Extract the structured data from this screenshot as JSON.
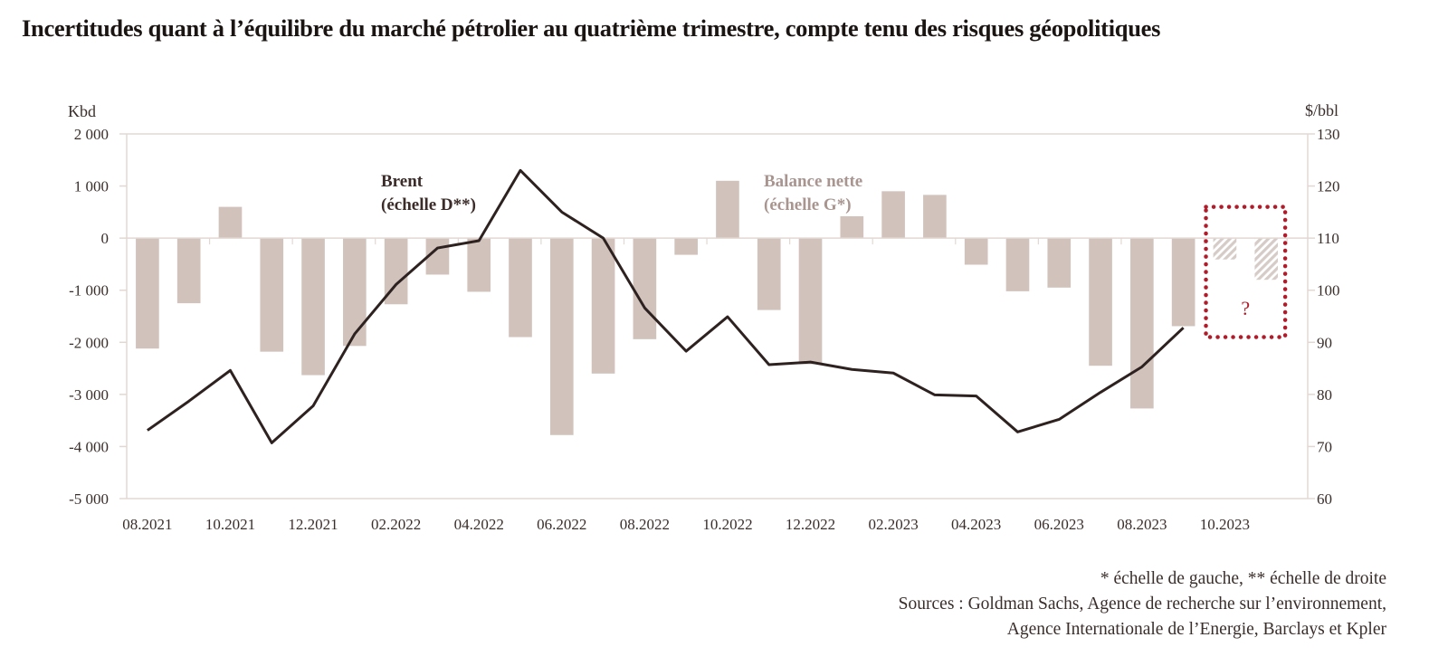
{
  "title": "Incertitudes quant à l’équilibre du marché pétrolier au quatrième trimestre, compte tenu des risques géopolitiques",
  "footnotes": {
    "scale_note": "* échelle de gauche, ** échelle de droite",
    "sources_line1": "Sources : Goldman Sachs, Agence de recherche sur l’environnement,",
    "sources_line2": "Agence Internationale de l’Energie, Barclays et Kpler"
  },
  "colors": {
    "bar": "#d1c2bb",
    "bar_forecast_hatch": "#d6ccc7",
    "line": "#2e2220",
    "highlight_box": "#b01c2a",
    "axis": "#e2d8d3",
    "balance_label": "#a89590"
  },
  "chart_data": {
    "type": "bar",
    "title": "Incertitudes quant à l’équilibre du marché pétrolier au quatrième trimestre, compte tenu des risques géopolitiques",
    "categories": [
      "08.2021",
      "09.2021",
      "10.2021",
      "11.2021",
      "12.2021",
      "01.2022",
      "02.2022",
      "03.2022",
      "04.2022",
      "05.2022",
      "06.2022",
      "07.2022",
      "08.2022",
      "09.2022",
      "10.2022",
      "11.2022",
      "12.2022",
      "01.2023",
      "02.2023",
      "03.2023",
      "04.2023",
      "05.2023",
      "06.2023",
      "07.2023",
      "08.2023",
      "09.2023",
      "10.2023",
      "11.2023"
    ],
    "x_tick_labels": [
      "08.2021",
      "10.2021",
      "12.2021",
      "02.2022",
      "04.2022",
      "06.2022",
      "08.2022",
      "10.2022",
      "12.2022",
      "02.2023",
      "04.2023",
      "06.2023",
      "08.2023",
      "10.2023"
    ],
    "left_axis": {
      "label": "Kbd",
      "ylim": [
        -5000,
        2000
      ],
      "ticks": [
        2000,
        1000,
        0,
        -1000,
        -2000,
        -3000,
        -4000,
        -5000
      ],
      "tick_labels": [
        "2 000",
        "1 000",
        "0",
        "-1 000",
        "-2 000",
        "-3 000",
        "-4 000",
        "-5 000"
      ]
    },
    "right_axis": {
      "label": "$/bbl",
      "ylim": [
        60,
        130
      ],
      "ticks": [
        130,
        120,
        110,
        100,
        90,
        80,
        70,
        60
      ],
      "tick_labels": [
        "130",
        "120",
        "110",
        "100",
        "90",
        "80",
        "70",
        "60"
      ]
    },
    "grid": false,
    "series": [
      {
        "name": "Balance nette",
        "annotation_line1": "Balance nette",
        "annotation_line2": "(échelle G*)",
        "type": "bar",
        "axis": "left",
        "values": [
          -2120,
          -1250,
          600,
          -2180,
          -2630,
          -2070,
          -1270,
          -700,
          -1030,
          -1900,
          -3780,
          -2600,
          -1940,
          -320,
          1100,
          -1380,
          -2420,
          420,
          900,
          830,
          -510,
          -1020,
          -950,
          -2450,
          -3270,
          -1690,
          -410,
          -800
        ],
        "forecast": [
          false,
          false,
          false,
          false,
          false,
          false,
          false,
          false,
          false,
          false,
          false,
          false,
          false,
          false,
          false,
          false,
          false,
          false,
          false,
          false,
          false,
          false,
          false,
          false,
          false,
          false,
          true,
          true
        ]
      },
      {
        "name": "Brent",
        "annotation_line1": "Brent",
        "annotation_line2": "(échelle D**)",
        "type": "line",
        "axis": "right",
        "values": [
          73.1,
          78.7,
          84.6,
          70.7,
          77.8,
          91.6,
          101.1,
          108.1,
          109.5,
          123.0,
          115.0,
          110.0,
          96.6,
          88.3,
          94.9,
          85.7,
          86.2,
          84.8,
          84.1,
          79.9,
          79.7,
          72.8,
          75.2,
          80.4,
          85.3,
          92.8,
          null,
          null
        ]
      }
    ],
    "highlight": {
      "categories": [
        "10.2023",
        "11.2023"
      ],
      "label": "?",
      "brent_range": [
        91,
        116
      ]
    }
  }
}
